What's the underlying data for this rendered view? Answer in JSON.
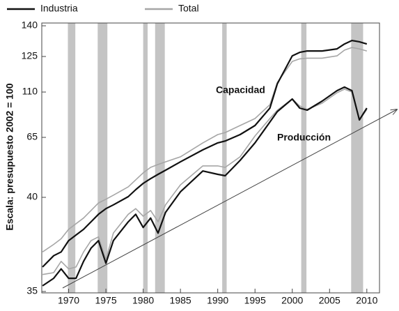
{
  "chart_data": {
    "type": "line",
    "y_axis_label": "Escala: presupuesto 2002 = 100",
    "annotations": {
      "capacidad": "Capacidad",
      "produccion": "Producción"
    },
    "x": [
      1966.5,
      1968,
      1969,
      1970,
      1971,
      1972,
      1973,
      1974,
      1975,
      1976,
      1978,
      1979,
      1980,
      1981,
      1982,
      1983,
      1985,
      1988,
      1990,
      1991,
      1993,
      1995,
      1997,
      1998,
      2000,
      2001,
      2002,
      2004,
      2006,
      2007,
      2008,
      2009,
      2010
    ],
    "series": [
      {
        "name": "Industria",
        "color": "#111111",
        "capacidad": [
          36.3,
          36.9,
          37.1,
          37.7,
          38.0,
          38.3,
          38.7,
          39.1,
          39.4,
          39.6,
          40.3,
          43.2,
          45.8,
          47.8,
          49.6,
          51.3,
          54.8,
          59.8,
          62.7,
          63.5,
          67.8,
          76.8,
          94.1,
          113.5,
          125.3,
          127.0,
          127.7,
          127.7,
          128.7,
          131.1,
          132.8,
          132.2,
          131.1
        ],
        "produccion": [
          35.3,
          35.7,
          36.2,
          35.7,
          35.7,
          36.6,
          37.3,
          37.7,
          36.5,
          37.7,
          38.7,
          39.1,
          38.4,
          38.9,
          38.1,
          39.2,
          42.3,
          51.0,
          49.6,
          49.0,
          55.4,
          62.7,
          80.2,
          90.6,
          103.1,
          94.1,
          92.0,
          101.0,
          110.6,
          112.1,
          110.6,
          82.3,
          94.1
        ]
      },
      {
        "name": "Total",
        "color": "#a6a6a6",
        "capacidad": [
          37.1,
          37.5,
          37.8,
          38.3,
          38.6,
          38.9,
          39.3,
          39.7,
          39.9,
          40.9,
          44.4,
          47.3,
          50.2,
          52.5,
          53.7,
          54.8,
          56.9,
          62.7,
          67.8,
          69.8,
          76.8,
          83.7,
          97.5,
          114.1,
          122.9,
          124.0,
          124.3,
          124.3,
          125.3,
          128.1,
          129.4,
          128.7,
          127.7
        ],
        "produccion": [
          35.9,
          36.0,
          36.6,
          36.2,
          36.3,
          37.1,
          37.7,
          37.9,
          36.7,
          38.1,
          39.1,
          39.4,
          39.0,
          39.3,
          38.7,
          39.6,
          45.2,
          53.1,
          53.1,
          52.5,
          56.9,
          66.4,
          83.7,
          92.0,
          103.1,
          96.2,
          92.7,
          98.9,
          109.3,
          111.2,
          110.0,
          82.3,
          92.7
        ]
      }
    ],
    "shaded": [
      [
        1969.9,
        1970.9
      ],
      [
        1973.9,
        1975.2
      ],
      [
        1980.0,
        1980.6
      ],
      [
        1981.6,
        1982.9
      ],
      [
        1990.6,
        1991.2
      ],
      [
        2001.2,
        2001.9
      ],
      [
        2007.9,
        2009.5
      ]
    ],
    "shade_color": "#c4c4c4",
    "xlim": [
      1966.4,
      2011.7
    ],
    "xticks": [
      1970,
      1975,
      1980,
      1985,
      1990,
      1995,
      2000,
      2005,
      2010
    ],
    "ylim": [
      35,
      140
    ],
    "yticks": [
      35,
      40,
      65,
      110,
      125,
      140
    ]
  }
}
